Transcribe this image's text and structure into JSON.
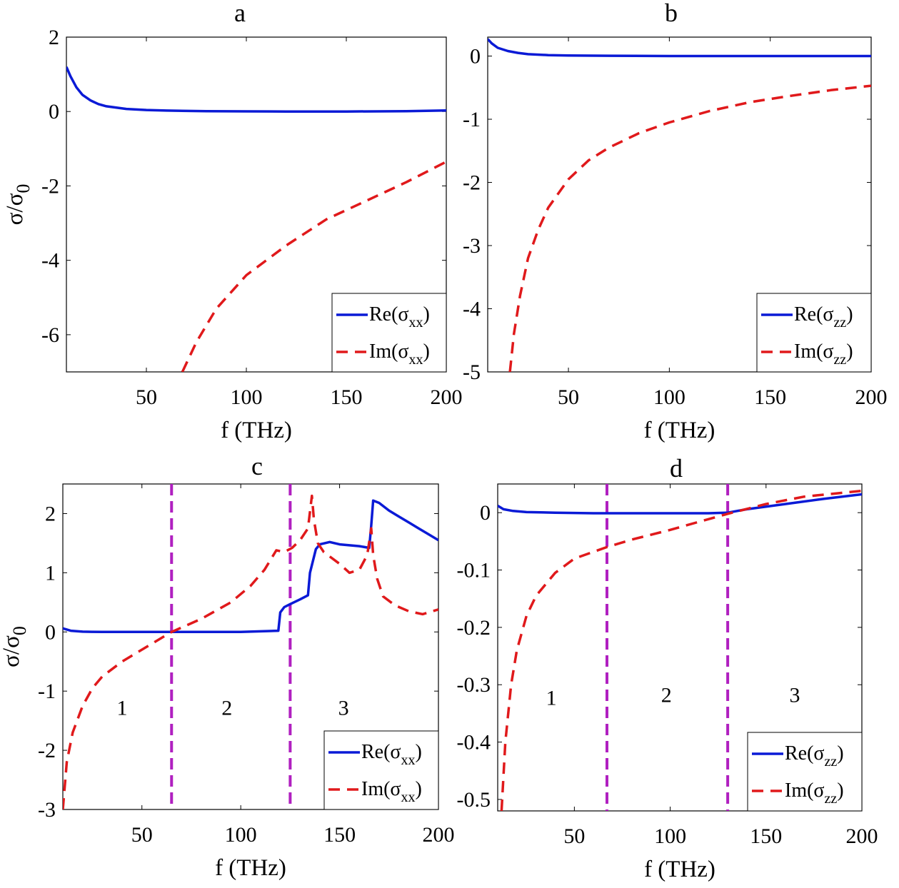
{
  "colors": {
    "re_line": "#0a1ad6",
    "im_line": "#e0191b",
    "divider": "#b020c0"
  },
  "ylabel_html": "σ/σ0",
  "chart_data": [
    {
      "id": "a",
      "type": "line",
      "title": "a",
      "xlabel": "f (THz)",
      "ylabel": "σ/σ0",
      "xlim": [
        10,
        200
      ],
      "ylim": [
        -7,
        2
      ],
      "xticks": [
        50,
        100,
        150,
        200
      ],
      "yticks": [
        2,
        0,
        -2,
        -4,
        -6
      ],
      "legend": {
        "position": "bottom-right",
        "entries": [
          {
            "series": "re",
            "label_main": "Re(σ",
            "label_sub": "xx",
            "label_close": ")"
          },
          {
            "series": "im",
            "label_main": "Im(σ",
            "label_sub": "xx",
            "label_close": ")"
          }
        ]
      },
      "series": [
        {
          "name": "Re(σxx)",
          "key": "re",
          "style": "solid",
          "x": [
            10,
            12,
            15,
            18,
            22,
            26,
            30,
            40,
            50,
            60,
            80,
            100,
            120,
            150,
            180,
            200
          ],
          "y": [
            1.2,
            0.95,
            0.65,
            0.45,
            0.3,
            0.2,
            0.14,
            0.07,
            0.04,
            0.025,
            0.01,
            0.005,
            0.0,
            0.0,
            0.01,
            0.03
          ]
        },
        {
          "name": "Im(σxx)",
          "key": "im",
          "style": "dashed",
          "x": [
            68,
            75,
            85,
            100,
            120,
            140,
            160,
            180,
            200
          ],
          "y": [
            -7.0,
            -6.2,
            -5.3,
            -4.4,
            -3.6,
            -2.9,
            -2.4,
            -1.9,
            -1.35
          ]
        }
      ]
    },
    {
      "id": "b",
      "type": "line",
      "title": "b",
      "xlabel": "f (THz)",
      "ylabel": "",
      "xlim": [
        10,
        200
      ],
      "ylim": [
        -5,
        0.3
      ],
      "xticks": [
        50,
        100,
        150,
        200
      ],
      "yticks": [
        0,
        -1,
        -2,
        -3,
        -4,
        -5
      ],
      "legend": {
        "position": "bottom-right",
        "entries": [
          {
            "series": "re",
            "label_main": "Re(σ",
            "label_sub": "zz",
            "label_close": ")"
          },
          {
            "series": "im",
            "label_main": "Im(σ",
            "label_sub": "zz",
            "label_close": ")"
          }
        ]
      },
      "series": [
        {
          "name": "Re(σzz)",
          "key": "re",
          "style": "solid",
          "x": [
            10,
            12,
            15,
            20,
            25,
            30,
            40,
            50,
            70,
            100,
            150,
            200
          ],
          "y": [
            0.27,
            0.2,
            0.13,
            0.08,
            0.05,
            0.03,
            0.015,
            0.01,
            0.005,
            0.0,
            0.0,
            0.0
          ]
        },
        {
          "name": "Im(σzz)",
          "key": "im",
          "style": "dashed",
          "x": [
            21,
            23,
            26,
            30,
            35,
            40,
            50,
            60,
            70,
            85,
            100,
            120,
            140,
            160,
            180,
            200
          ],
          "y": [
            -5.0,
            -4.4,
            -3.8,
            -3.2,
            -2.75,
            -2.4,
            -1.95,
            -1.65,
            -1.45,
            -1.22,
            -1.05,
            -0.87,
            -0.73,
            -0.63,
            -0.54,
            -0.47
          ]
        }
      ]
    },
    {
      "id": "c",
      "type": "line",
      "title": "c",
      "xlabel": "f (THz)",
      "ylabel": "σ/σ0",
      "xlim": [
        10,
        200
      ],
      "ylim": [
        -3,
        2.5
      ],
      "xticks": [
        50,
        100,
        150,
        200
      ],
      "yticks": [
        2,
        1,
        0,
        -1,
        -2,
        -3
      ],
      "vlines": [
        65,
        125
      ],
      "regions": [
        {
          "label": "1",
          "x": 40,
          "y": -1.4
        },
        {
          "label": "2",
          "x": 93,
          "y": -1.4
        },
        {
          "label": "3",
          "x": 152,
          "y": -1.4
        }
      ],
      "legend": {
        "position": "bottom-right",
        "entries": [
          {
            "series": "re",
            "label_main": "Re(σ",
            "label_sub": "xx",
            "label_close": ")"
          },
          {
            "series": "im",
            "label_main": "Im(σ",
            "label_sub": "xx",
            "label_close": ")"
          }
        ]
      },
      "series": [
        {
          "name": "Re(σxx)",
          "key": "re",
          "style": "solid",
          "x": [
            10,
            14,
            20,
            30,
            50,
            70,
            100,
            119,
            120,
            122,
            125,
            130,
            134,
            135,
            138,
            140,
            145,
            150,
            160,
            165,
            166,
            167,
            170,
            175,
            180,
            185,
            190,
            195,
            200
          ],
          "y": [
            0.06,
            0.02,
            0.005,
            0.0,
            0.0,
            0.0,
            0.0,
            0.02,
            0.33,
            0.42,
            0.47,
            0.55,
            0.62,
            1.0,
            1.4,
            1.48,
            1.52,
            1.48,
            1.45,
            1.42,
            1.8,
            2.22,
            2.18,
            2.05,
            1.95,
            1.85,
            1.75,
            1.65,
            1.55
          ]
        },
        {
          "name": "Im(σxx)",
          "key": "im",
          "style": "dashed",
          "x": [
            10,
            12,
            15,
            20,
            25,
            30,
            40,
            50,
            65,
            80,
            95,
            105,
            112,
            118,
            122,
            126,
            130,
            134,
            136,
            137,
            139,
            142,
            150,
            155,
            160,
            164,
            166,
            167,
            169,
            172,
            178,
            185,
            192,
            200
          ],
          "y": [
            -3.0,
            -2.2,
            -1.7,
            -1.25,
            -0.95,
            -0.75,
            -0.5,
            -0.3,
            0.0,
            0.22,
            0.5,
            0.78,
            1.05,
            1.38,
            1.35,
            1.42,
            1.55,
            1.75,
            2.3,
            1.9,
            1.5,
            1.35,
            1.15,
            1.0,
            1.05,
            1.3,
            1.75,
            1.3,
            0.9,
            0.6,
            0.45,
            0.35,
            0.3,
            0.38
          ]
        }
      ]
    },
    {
      "id": "d",
      "type": "line",
      "title": "d",
      "xlabel": "f (THz)",
      "ylabel": "",
      "xlim": [
        10,
        200
      ],
      "ylim": [
        -0.52,
        0.05
      ],
      "xticks": [
        50,
        100,
        150,
        200
      ],
      "yticks": [
        0,
        -0.1,
        -0.2,
        -0.3,
        -0.4,
        -0.5
      ],
      "vlines": [
        67,
        130
      ],
      "regions": [
        {
          "label": "1",
          "x": 38,
          "y": -0.335
        },
        {
          "label": "2",
          "x": 98,
          "y": -0.33
        },
        {
          "label": "3",
          "x": 165,
          "y": -0.33
        }
      ],
      "legend": {
        "position": "bottom-right",
        "entries": [
          {
            "series": "re",
            "label_main": "Re(σ",
            "label_sub": "zz",
            "label_close": ")"
          },
          {
            "series": "im",
            "label_main": "Im(σ",
            "label_sub": "zz",
            "label_close": ")"
          }
        ]
      },
      "series": [
        {
          "name": "Re(σzz)",
          "key": "re",
          "style": "solid",
          "x": [
            10,
            13,
            18,
            25,
            40,
            60,
            80,
            100,
            120,
            130,
            140,
            160,
            180,
            200
          ],
          "y": [
            0.012,
            0.006,
            0.003,
            0.001,
            0.0,
            -0.001,
            -0.001,
            -0.001,
            -0.001,
            0.0,
            0.006,
            0.015,
            0.024,
            0.032
          ]
        },
        {
          "name": "Im(σzz)",
          "key": "im",
          "style": "dashed",
          "x": [
            12,
            14,
            17,
            20,
            25,
            30,
            40,
            50,
            67,
            80,
            100,
            115,
            130,
            150,
            170,
            200
          ],
          "y": [
            -0.52,
            -0.4,
            -0.3,
            -0.24,
            -0.18,
            -0.145,
            -0.105,
            -0.08,
            -0.06,
            -0.047,
            -0.03,
            -0.016,
            -0.002,
            0.015,
            0.028,
            0.038
          ]
        }
      ]
    }
  ]
}
